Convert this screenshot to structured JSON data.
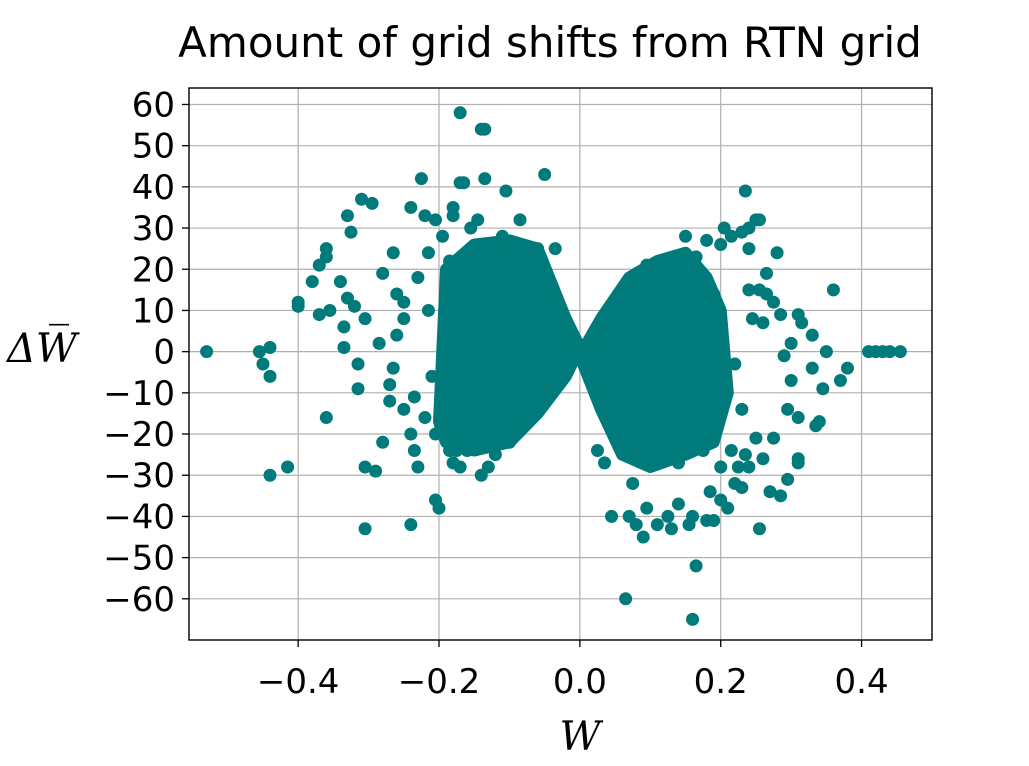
{
  "chart_data": {
    "type": "scatter",
    "title": "Amount of grid shifts from RTN grid",
    "xlabel": "W",
    "ylabel": "ΔW̅",
    "xlim": [
      -0.555,
      0.5
    ],
    "ylim": [
      -70,
      64
    ],
    "xticks": [
      -0.4,
      -0.2,
      0.0,
      0.2,
      0.4
    ],
    "xtick_labels": [
      "−0.4",
      "−0.2",
      "0.0",
      "0.2",
      "0.4"
    ],
    "yticks": [
      60,
      50,
      40,
      30,
      20,
      10,
      0,
      -10,
      -20,
      -30,
      -40,
      -50,
      -60
    ],
    "ytick_labels": [
      "60",
      "50",
      "40",
      "30",
      "20",
      "10",
      "0",
      "−10",
      "−20",
      "−30",
      "−40",
      "−50",
      "−60"
    ],
    "grid": true,
    "color": "#007a7a",
    "points": [
      {
        "x": -0.53,
        "y": 0
      },
      {
        "x": -0.455,
        "y": 0
      },
      {
        "x": -0.45,
        "y": -3
      },
      {
        "x": -0.44,
        "y": 1
      },
      {
        "x": -0.44,
        "y": -6
      },
      {
        "x": -0.44,
        "y": -30
      },
      {
        "x": -0.415,
        "y": -28
      },
      {
        "x": -0.4,
        "y": 11
      },
      {
        "x": -0.4,
        "y": 12
      },
      {
        "x": -0.38,
        "y": 17
      },
      {
        "x": -0.37,
        "y": 21
      },
      {
        "x": -0.36,
        "y": 23
      },
      {
        "x": -0.36,
        "y": 25
      },
      {
        "x": -0.37,
        "y": 9
      },
      {
        "x": -0.355,
        "y": 10
      },
      {
        "x": -0.36,
        "y": -16
      },
      {
        "x": -0.34,
        "y": 17
      },
      {
        "x": -0.335,
        "y": 1
      },
      {
        "x": -0.335,
        "y": 6
      },
      {
        "x": -0.33,
        "y": 13
      },
      {
        "x": -0.33,
        "y": 33
      },
      {
        "x": -0.325,
        "y": 29
      },
      {
        "x": -0.32,
        "y": 11
      },
      {
        "x": -0.315,
        "y": -9
      },
      {
        "x": -0.315,
        "y": -3
      },
      {
        "x": -0.31,
        "y": 37
      },
      {
        "x": -0.305,
        "y": 8
      },
      {
        "x": -0.305,
        "y": -28
      },
      {
        "x": -0.305,
        "y": -43
      },
      {
        "x": -0.295,
        "y": 36
      },
      {
        "x": -0.29,
        "y": -29
      },
      {
        "x": -0.285,
        "y": 2
      },
      {
        "x": -0.28,
        "y": 19
      },
      {
        "x": -0.28,
        "y": -22
      },
      {
        "x": -0.27,
        "y": -12
      },
      {
        "x": -0.265,
        "y": 24
      },
      {
        "x": -0.26,
        "y": 14
      },
      {
        "x": -0.25,
        "y": 12
      },
      {
        "x": -0.24,
        "y": 35
      },
      {
        "x": -0.24,
        "y": -42
      },
      {
        "x": -0.235,
        "y": -24
      },
      {
        "x": -0.23,
        "y": -28
      },
      {
        "x": -0.225,
        "y": 42
      },
      {
        "x": -0.22,
        "y": 33
      },
      {
        "x": -0.215,
        "y": 24
      },
      {
        "x": -0.205,
        "y": 32
      },
      {
        "x": -0.205,
        "y": -36
      },
      {
        "x": -0.2,
        "y": -38
      },
      {
        "x": -0.195,
        "y": 28
      },
      {
        "x": -0.19,
        "y": -14
      },
      {
        "x": -0.185,
        "y": -24
      },
      {
        "x": -0.185,
        "y": 22
      },
      {
        "x": -0.18,
        "y": 33
      },
      {
        "x": -0.18,
        "y": 35
      },
      {
        "x": -0.175,
        "y": 16
      },
      {
        "x": -0.17,
        "y": -28
      },
      {
        "x": -0.17,
        "y": 41
      },
      {
        "x": -0.165,
        "y": 41
      },
      {
        "x": -0.175,
        "y": -24
      },
      {
        "x": -0.18,
        "y": -27
      },
      {
        "x": -0.17,
        "y": 58
      },
      {
        "x": -0.16,
        "y": -24
      },
      {
        "x": -0.155,
        "y": 30
      },
      {
        "x": -0.145,
        "y": 32
      },
      {
        "x": -0.14,
        "y": -30
      },
      {
        "x": -0.14,
        "y": 54
      },
      {
        "x": -0.135,
        "y": 54
      },
      {
        "x": -0.135,
        "y": 42
      },
      {
        "x": -0.13,
        "y": -28
      },
      {
        "x": -0.125,
        "y": 25
      },
      {
        "x": -0.12,
        "y": -25
      },
      {
        "x": -0.11,
        "y": 28
      },
      {
        "x": -0.105,
        "y": 39
      },
      {
        "x": -0.1,
        "y": -22
      },
      {
        "x": -0.09,
        "y": 25
      },
      {
        "x": -0.085,
        "y": 32
      },
      {
        "x": -0.06,
        "y": 25
      },
      {
        "x": -0.05,
        "y": 43
      },
      {
        "x": -0.035,
        "y": 25
      },
      {
        "x": -0.27,
        "y": -8
      },
      {
        "x": -0.265,
        "y": -4
      },
      {
        "x": -0.26,
        "y": 4
      },
      {
        "x": -0.25,
        "y": -14
      },
      {
        "x": -0.25,
        "y": 8
      },
      {
        "x": -0.24,
        "y": -20
      },
      {
        "x": -0.235,
        "y": -11
      },
      {
        "x": -0.23,
        "y": 18
      },
      {
        "x": -0.22,
        "y": -16
      },
      {
        "x": -0.215,
        "y": 10
      },
      {
        "x": -0.21,
        "y": -6
      },
      {
        "x": -0.205,
        "y": -20
      },
      {
        "x": 0.065,
        "y": -60
      },
      {
        "x": 0.07,
        "y": -40
      },
      {
        "x": 0.045,
        "y": -40
      },
      {
        "x": 0.08,
        "y": -42
      },
      {
        "x": 0.09,
        "y": -45
      },
      {
        "x": 0.095,
        "y": -38
      },
      {
        "x": 0.11,
        "y": -42
      },
      {
        "x": 0.125,
        "y": -40
      },
      {
        "x": 0.13,
        "y": -43
      },
      {
        "x": 0.14,
        "y": -37
      },
      {
        "x": 0.155,
        "y": -42
      },
      {
        "x": 0.16,
        "y": -40
      },
      {
        "x": 0.165,
        "y": -52
      },
      {
        "x": 0.16,
        "y": -65
      },
      {
        "x": 0.18,
        "y": -41
      },
      {
        "x": 0.19,
        "y": -41
      },
      {
        "x": 0.185,
        "y": -34
      },
      {
        "x": 0.2,
        "y": -36
      },
      {
        "x": 0.21,
        "y": -38
      },
      {
        "x": 0.22,
        "y": -32
      },
      {
        "x": 0.225,
        "y": -28
      },
      {
        "x": 0.23,
        "y": -33
      },
      {
        "x": 0.235,
        "y": -25
      },
      {
        "x": 0.24,
        "y": -28
      },
      {
        "x": 0.255,
        "y": -43
      },
      {
        "x": 0.26,
        "y": -26
      },
      {
        "x": 0.27,
        "y": -34
      },
      {
        "x": 0.285,
        "y": -35
      },
      {
        "x": 0.295,
        "y": -31
      },
      {
        "x": 0.31,
        "y": -26
      },
      {
        "x": 0.31,
        "y": -27
      },
      {
        "x": 0.31,
        "y": -16
      },
      {
        "x": 0.335,
        "y": -18
      },
      {
        "x": 0.34,
        "y": -17
      },
      {
        "x": 0.345,
        "y": -9
      },
      {
        "x": 0.37,
        "y": -7
      },
      {
        "x": 0.38,
        "y": -4
      },
      {
        "x": 0.33,
        "y": -4
      },
      {
        "x": 0.295,
        "y": -14
      },
      {
        "x": 0.275,
        "y": -21
      },
      {
        "x": 0.25,
        "y": -21
      },
      {
        "x": 0.2,
        "y": 26
      },
      {
        "x": 0.205,
        "y": 30
      },
      {
        "x": 0.215,
        "y": 28
      },
      {
        "x": 0.23,
        "y": 29
      },
      {
        "x": 0.24,
        "y": 30
      },
      {
        "x": 0.235,
        "y": 39
      },
      {
        "x": 0.25,
        "y": 32
      },
      {
        "x": 0.255,
        "y": 32
      },
      {
        "x": 0.24,
        "y": 25
      },
      {
        "x": 0.265,
        "y": 19
      },
      {
        "x": 0.24,
        "y": 15
      },
      {
        "x": 0.255,
        "y": 15
      },
      {
        "x": 0.265,
        "y": 14
      },
      {
        "x": 0.275,
        "y": 12
      },
      {
        "x": 0.285,
        "y": 9
      },
      {
        "x": 0.245,
        "y": 8
      },
      {
        "x": 0.26,
        "y": 7
      },
      {
        "x": 0.28,
        "y": 24
      },
      {
        "x": 0.31,
        "y": 9
      },
      {
        "x": 0.315,
        "y": 7
      },
      {
        "x": 0.33,
        "y": 4
      },
      {
        "x": 0.35,
        "y": 0
      },
      {
        "x": 0.36,
        "y": 15
      },
      {
        "x": 0.3,
        "y": 2
      },
      {
        "x": 0.29,
        "y": -1
      },
      {
        "x": 0.3,
        "y": -7
      },
      {
        "x": 0.41,
        "y": 0
      },
      {
        "x": 0.42,
        "y": 0
      },
      {
        "x": 0.43,
        "y": 0
      },
      {
        "x": 0.44,
        "y": 0
      },
      {
        "x": 0.455,
        "y": 0
      },
      {
        "x": 0.15,
        "y": 28
      },
      {
        "x": 0.155,
        "y": 21
      },
      {
        "x": 0.165,
        "y": 23
      },
      {
        "x": 0.18,
        "y": 27
      },
      {
        "x": 0.19,
        "y": 14
      },
      {
        "x": 0.2,
        "y": -28
      },
      {
        "x": 0.215,
        "y": -24
      },
      {
        "x": 0.22,
        "y": -3
      },
      {
        "x": 0.23,
        "y": -14
      },
      {
        "x": 0.19,
        "y": -20
      },
      {
        "x": 0.175,
        "y": -24
      },
      {
        "x": 0.14,
        "y": -27
      },
      {
        "x": 0.11,
        "y": -26
      },
      {
        "x": 0.075,
        "y": -32
      },
      {
        "x": 0.065,
        "y": -24
      },
      {
        "x": 0.055,
        "y": -22
      },
      {
        "x": 0.035,
        "y": -27
      },
      {
        "x": 0.025,
        "y": -24
      },
      {
        "x": 0.1,
        "y": 17
      },
      {
        "x": 0.095,
        "y": 21
      }
    ]
  }
}
